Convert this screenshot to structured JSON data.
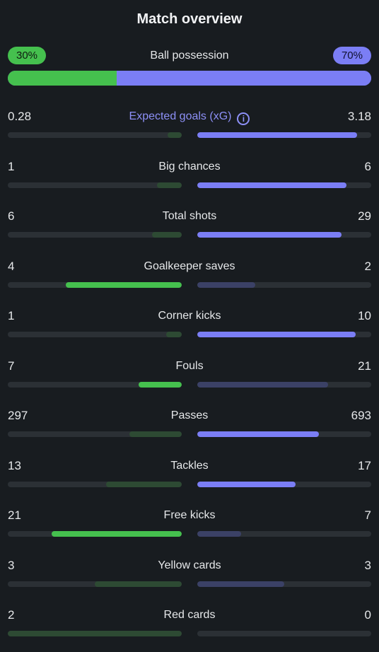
{
  "title": "Match overview",
  "possession": {
    "label": "Ball possession",
    "home": "30%",
    "away": "70%",
    "home_fraction": 0.3
  },
  "colors": {
    "home_win": "#45c04e",
    "home_lose": "#2d4a33",
    "away_win": "#7b7ef5",
    "away_lose": "#3b4166",
    "track": "#2b3035",
    "accent": "#8d90f7",
    "background": "#181c20"
  },
  "stats": [
    {
      "label": "Expected goals (xG)",
      "home": "0.28",
      "away": "3.18",
      "home_value": 0.28,
      "away_value": 3.18,
      "accent": true,
      "info_icon": "info-icon"
    },
    {
      "label": "Big chances",
      "home": "1",
      "away": "6",
      "home_value": 1,
      "away_value": 6
    },
    {
      "label": "Total shots",
      "home": "6",
      "away": "29",
      "home_value": 6,
      "away_value": 29
    },
    {
      "label": "Goalkeeper saves",
      "home": "4",
      "away": "2",
      "home_value": 4,
      "away_value": 2
    },
    {
      "label": "Corner kicks",
      "home": "1",
      "away": "10",
      "home_value": 1,
      "away_value": 10
    },
    {
      "label": "Fouls",
      "home": "7",
      "away": "21",
      "home_value": 7,
      "away_value": 21,
      "lower_is_better": true
    },
    {
      "label": "Passes",
      "home": "297",
      "away": "693",
      "home_value": 297,
      "away_value": 693
    },
    {
      "label": "Tackles",
      "home": "13",
      "away": "17",
      "home_value": 13,
      "away_value": 17
    },
    {
      "label": "Free kicks",
      "home": "21",
      "away": "7",
      "home_value": 21,
      "away_value": 7
    },
    {
      "label": "Yellow cards",
      "home": "3",
      "away": "3",
      "home_value": 3,
      "away_value": 3,
      "lower_is_better": true
    },
    {
      "label": "Red cards",
      "home": "2",
      "away": "0",
      "home_value": 2,
      "away_value": 0,
      "lower_is_better": true
    }
  ]
}
